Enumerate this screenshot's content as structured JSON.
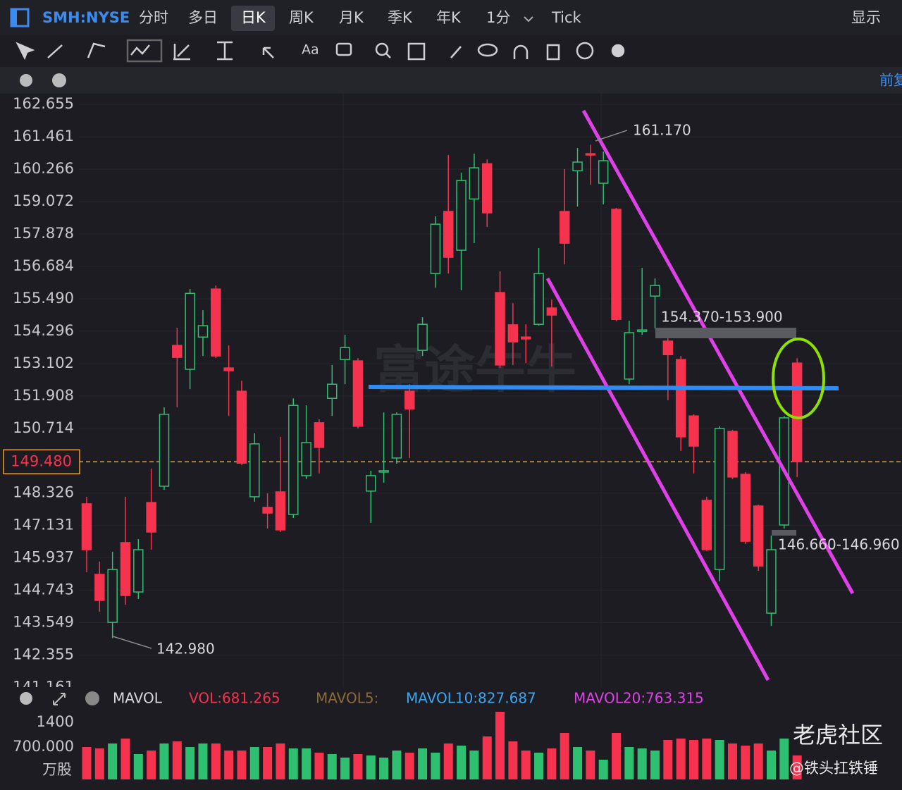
{
  "header": {
    "symbol": "SMH:NYSE",
    "tabs": [
      "分时",
      "多日",
      "日K",
      "周K",
      "月K",
      "季K",
      "年K",
      "1分",
      "Tick"
    ],
    "display": "显示"
  },
  "toolbar": {
    "text_tool": "Aa"
  },
  "subbar": {
    "adjust": "前复"
  },
  "watermarks": {
    "app": "富途牛牛",
    "community": "老虎社区",
    "author": "@铁头扛铁锤"
  },
  "chart_data": [
    {
      "type": "candlestick",
      "colors": {
        "up": "#2fbf71",
        "down": "#f5334f"
      },
      "ylim": [
        141.16,
        163.05
      ],
      "yticks": [
        162.655,
        161.461,
        160.266,
        159.072,
        157.878,
        156.684,
        {
          "value": 155.49,
          "label": "155.490"
        },
        154.296,
        153.102,
        151.908,
        150.714,
        148.326,
        147.131,
        145.937,
        144.743,
        143.549,
        142.355,
        141.161
      ],
      "last_price": {
        "value": 149.48,
        "label": "149.480"
      },
      "open": [
        147.93,
        145.33,
        143.56,
        146.5,
        144.68,
        147.98,
        148.58,
        153.77,
        152.89,
        154.08,
        155.85,
        152.94,
        152.08,
        148.19,
        147.8,
        148.37,
        147.54,
        148.97,
        150.92,
        151.82,
        153.25,
        153.2,
        148.4,
        149.1,
        149.62,
        152.08,
        153.59,
        156.42,
        158.71,
        157.28,
        159.17,
        160.47,
        155.72,
        154.53,
        154.08,
        154.55,
        155.15,
        158.71,
        160.21,
        160.84,
        159.75,
        158.79,
        152.53,
        154.29,
        155.59,
        153.93,
        153.25,
        151.17,
        148.06,
        145.51,
        150.6,
        149.02,
        147.85,
        143.9,
        147.15,
        153.12
      ],
      "close": [
        146.24,
        144.37,
        145.51,
        144.55,
        146.24,
        146.89,
        151.23,
        153.33,
        155.69,
        154.5,
        153.38,
        152.84,
        149.43,
        150.14,
        147.59,
        146.97,
        151.56,
        150.19,
        150.01,
        152.34,
        153.69,
        150.79,
        148.97,
        149.15,
        151.23,
        151.43,
        154.55,
        158.24,
        157.02,
        159.85,
        160.32,
        158.66,
        153.05,
        153.9,
        154.01,
        156.42,
        154.89,
        157.54,
        160.53,
        160.79,
        160.58,
        154.73,
        154.24,
        154.34,
        155.98,
        153.43,
        150.4,
        150.06,
        146.24,
        150.71,
        148.92,
        146.55,
        145.64,
        146.24,
        151.1,
        149.48
      ],
      "high": [
        148.19,
        145.8,
        146.16,
        148.19,
        146.63,
        149.23,
        151.49,
        154.42,
        155.85,
        155.07,
        155.98,
        153.77,
        152.47,
        150.53,
        148.32,
        150.4,
        151.82,
        151.56,
        151.05,
        153.05,
        154.16,
        153.3,
        149.15,
        151.3,
        151.3,
        152.34,
        154.81,
        158.53,
        160.79,
        160.14,
        160.84,
        160.63,
        156.5,
        155.33,
        154.55,
        157.36,
        155.46,
        160.27,
        161.05,
        161.17,
        160.92,
        158.84,
        154.68,
        156.63,
        156.24,
        154.16,
        153.38,
        151.23,
        148.19,
        150.79,
        150.66,
        149.1,
        147.9,
        146.76,
        151.17,
        153.3
      ],
      "low": [
        145.41,
        143.95,
        142.98,
        144.21,
        144.42,
        146.24,
        148.45,
        151.49,
        152.16,
        153.38,
        153.3,
        151.17,
        149.36,
        148.01,
        147.02,
        146.89,
        147.41,
        148.84,
        149.05,
        151.17,
        152.34,
        150.71,
        147.23,
        148.71,
        149.41,
        149.62,
        153.38,
        155.9,
        156.42,
        155.8,
        157.54,
        158.14,
        152.94,
        153.05,
        153.12,
        154.5,
        152.99,
        156.76,
        158.89,
        159.69,
        158.97,
        154.66,
        152.34,
        154.16,
        154.4,
        151.75,
        149.88,
        149.05,
        146.19,
        145.07,
        148.84,
        146.45,
        145.46,
        143.43,
        147.02,
        148.92
      ],
      "annotations": {
        "high_label": {
          "value": 161.17,
          "label": "161.170"
        },
        "low_label": {
          "value": 142.98,
          "label": "142.980"
        },
        "resistance": "154.370-153.900",
        "support": "146.660-146.960"
      }
    },
    {
      "type": "bar",
      "title": "MAVOL",
      "legend": [
        "VOL:681.265",
        "MAVOL5:",
        "MAVOL10:827.687",
        "MAVOL20:763.315"
      ],
      "unit": "万股",
      "ylim": [
        0,
        2000
      ],
      "yticks": [
        1400,
        {
          "value": 700,
          "label": "700.000"
        }
      ],
      "values": [
        920,
        880,
        1020,
        1160,
        720,
        820,
        1020,
        1080,
        920,
        1020,
        1020,
        820,
        820,
        920,
        920,
        1020,
        880,
        880,
        760,
        720,
        620,
        720,
        680,
        620,
        820,
        760,
        880,
        760,
        1020,
        960,
        820,
        1220,
        1920,
        1080,
        820,
        760,
        880,
        1320,
        920,
        820,
        560,
        1320,
        920,
        880,
        820,
        1120,
        1160,
        1120,
        1160,
        1120,
        1020,
        960,
        1020,
        820,
        1160,
        681.265
      ]
    }
  ]
}
